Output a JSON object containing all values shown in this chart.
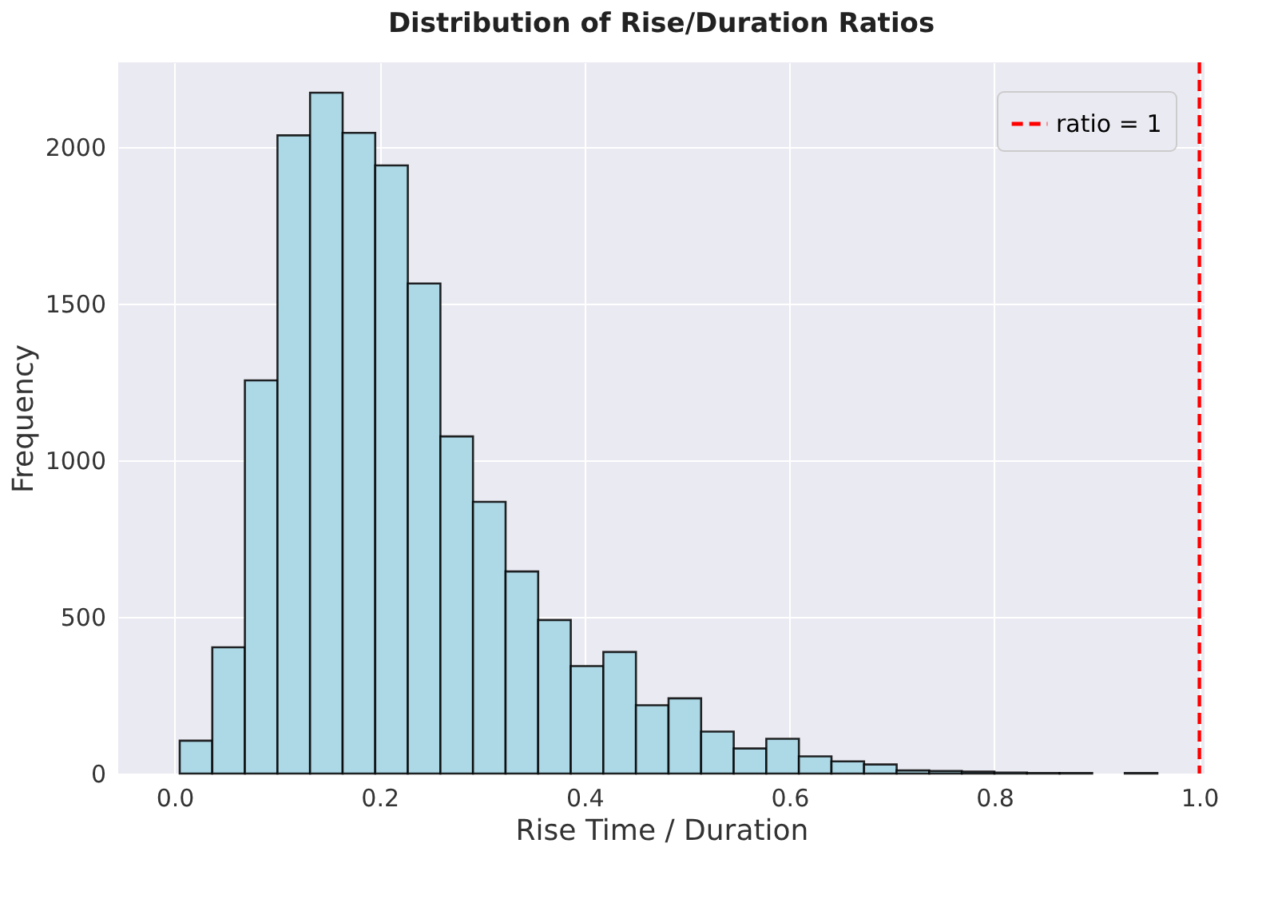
{
  "chart_data": {
    "type": "histogram",
    "title": "Distribution of Rise/Duration Ratios",
    "xlabel": "Rise Time / Duration",
    "ylabel": "Frequency",
    "bins": [
      0.005,
      0.0368,
      0.0686,
      0.1004,
      0.1322,
      0.164,
      0.1958,
      0.2276,
      0.2594,
      0.2912,
      0.323,
      0.3548,
      0.3866,
      0.4184,
      0.4502,
      0.482,
      0.5138,
      0.5456,
      0.5774,
      0.6092,
      0.641,
      0.6728,
      0.7046,
      0.7364,
      0.7682,
      0.8,
      0.8318,
      0.8636,
      0.8954,
      0.9272,
      0.959
    ],
    "values": [
      105,
      403,
      1255,
      2037,
      2173,
      2045,
      1941,
      1564,
      1076,
      867,
      645,
      490,
      343,
      388,
      218,
      240,
      134,
      80,
      111,
      55,
      39,
      29,
      10,
      8,
      6,
      3,
      2,
      2,
      0,
      2
    ],
    "color": "#add8e6",
    "xlim": [
      -0.055,
      1.005
    ],
    "ylim": [
      0,
      2270
    ],
    "xticks": [
      {
        "value": 0,
        "label": "0.0"
      },
      0.2,
      0.4,
      0.6,
      0.8,
      {
        "value": 1,
        "label": "1.0"
      }
    ],
    "yticks": [
      0,
      500,
      1000,
      1500,
      2000
    ],
    "ref_lines": [
      {
        "axis": "x",
        "value": 1,
        "label": "ratio = 1",
        "color": "#ff0000",
        "line_style": "dashed"
      }
    ],
    "grid": true,
    "legend": "top right"
  }
}
